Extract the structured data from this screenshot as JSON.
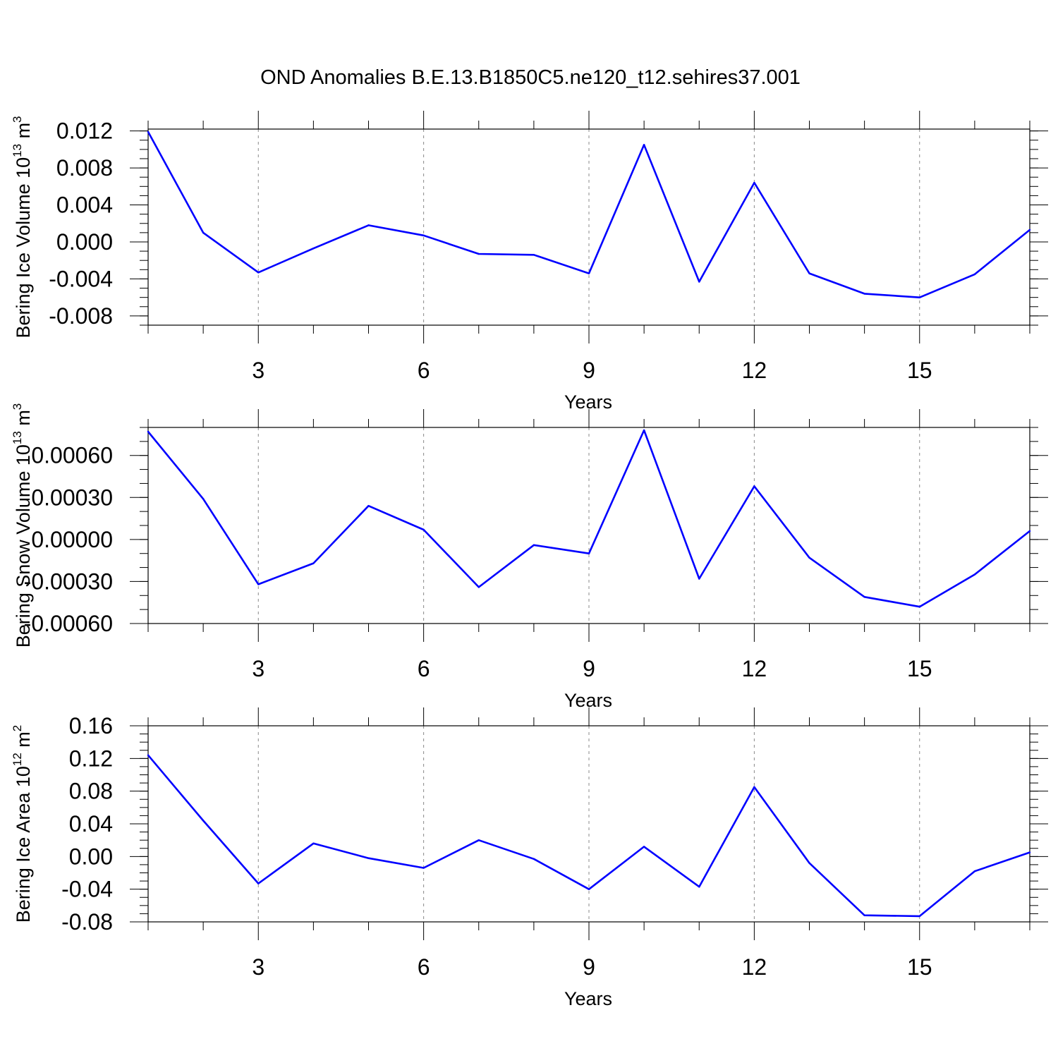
{
  "title": "OND Anomalies B.E.13.B1850C5.ne120_t12.sehires37.001",
  "colors": {
    "line": "#0000ff",
    "axis": "#000000",
    "grid": "#888888"
  },
  "chart_data": [
    {
      "type": "line",
      "ylabel": "Bering Ice Volume 10",
      "ylabel_sup": "13",
      "ylabel_tail": " m",
      "ylabel_sup2": "3",
      "xlabel": "Years",
      "xlim": [
        1,
        17
      ],
      "ylim": [
        -0.009,
        0.0122
      ],
      "xticks": [
        3,
        6,
        9,
        12,
        15
      ],
      "xtick_labels": [
        "3",
        "6",
        "9",
        "12",
        "15"
      ],
      "yticks": [
        0.012,
        0.008,
        0.004,
        0.0,
        -0.004,
        -0.008
      ],
      "ytick_labels": [
        "0.012",
        "0.008",
        "0.004",
        "0.000",
        "-0.004",
        "-0.008"
      ],
      "yminor_step": 0.001,
      "grid_x": true,
      "series": [
        {
          "name": "Bering Ice Volume",
          "x": [
            1,
            2,
            3,
            4,
            5,
            6,
            7,
            8,
            9,
            10,
            11,
            12,
            13,
            14,
            15,
            16,
            17
          ],
          "values": [
            0.0119,
            0.001,
            -0.0033,
            -0.0007,
            0.0018,
            0.0007,
            -0.0013,
            -0.0014,
            -0.0034,
            0.0105,
            -0.0043,
            0.0064,
            -0.0034,
            -0.0056,
            -0.006,
            -0.0035,
            0.0013
          ]
        }
      ]
    },
    {
      "type": "line",
      "ylabel": "Bering Snow Volume 10",
      "ylabel_sup": "13",
      "ylabel_tail": " m",
      "ylabel_sup2": "3",
      "xlabel": "Years",
      "xlim": [
        1,
        17
      ],
      "ylim": [
        -0.0006,
        0.0008
      ],
      "xticks": [
        3,
        6,
        9,
        12,
        15
      ],
      "xtick_labels": [
        "3",
        "6",
        "9",
        "12",
        "15"
      ],
      "yticks": [
        0.0006,
        0.0003,
        0.0,
        -0.0003,
        -0.0006
      ],
      "ytick_labels": [
        "0.00060",
        "0.00030",
        "0.00000",
        "-0.00030",
        "-0.00060"
      ],
      "yminor_step": 0.0001,
      "grid_x": true,
      "series": [
        {
          "name": "Bering Snow Volume",
          "x": [
            1,
            2,
            3,
            4,
            5,
            6,
            7,
            8,
            9,
            10,
            11,
            12,
            13,
            14,
            15,
            16,
            17
          ],
          "values": [
            0.00077,
            0.00029,
            -0.00032,
            -0.00017,
            0.00024,
            7e-05,
            -0.00034,
            -4e-05,
            -0.0001,
            0.00078,
            -0.00028,
            0.00038,
            -0.00013,
            -0.00041,
            -0.00048,
            -0.00025,
            6e-05
          ]
        }
      ]
    },
    {
      "type": "line",
      "ylabel": "Bering Ice Area 10",
      "ylabel_sup": "12",
      "ylabel_tail": " m",
      "ylabel_sup2": "2",
      "xlabel": "Years",
      "xlim": [
        1,
        17
      ],
      "ylim": [
        -0.08,
        0.16
      ],
      "xticks": [
        3,
        6,
        9,
        12,
        15
      ],
      "xtick_labels": [
        "3",
        "6",
        "9",
        "12",
        "15"
      ],
      "yticks": [
        0.16,
        0.12,
        0.08,
        0.04,
        0.0,
        -0.04,
        -0.08
      ],
      "ytick_labels": [
        "0.16",
        "0.12",
        "0.08",
        "0.04",
        "0.00",
        "-0.04",
        "-0.08"
      ],
      "yminor_step": 0.01,
      "grid_x": true,
      "series": [
        {
          "name": "Bering Ice Area",
          "x": [
            1,
            2,
            3,
            4,
            5,
            6,
            7,
            8,
            9,
            10,
            11,
            12,
            13,
            14,
            15,
            16,
            17
          ],
          "values": [
            0.124,
            0.044,
            -0.033,
            0.016,
            -0.002,
            -0.014,
            0.02,
            -0.003,
            -0.04,
            0.012,
            -0.037,
            0.085,
            -0.008,
            -0.072,
            -0.073,
            -0.018,
            0.005
          ]
        }
      ]
    }
  ]
}
